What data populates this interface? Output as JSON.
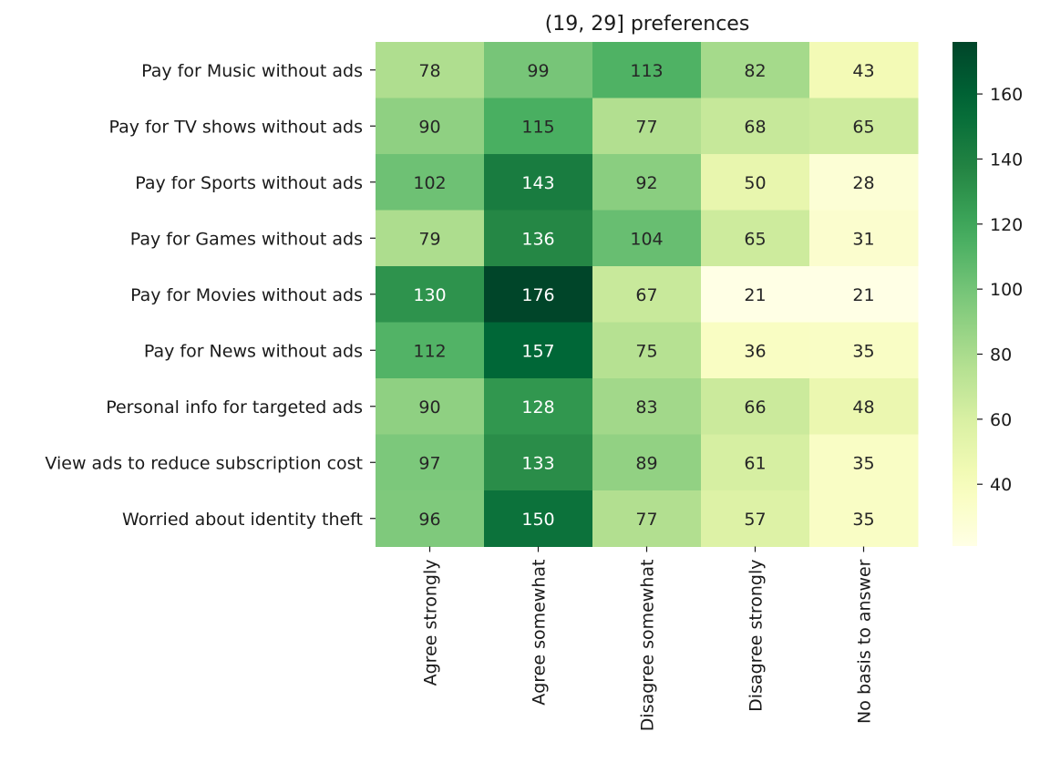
{
  "chart_data": {
    "type": "heatmap",
    "title": "(19, 29] preferences",
    "xlabel": "",
    "ylabel": "",
    "columns": [
      "Agree strongly",
      "Agree somewhat",
      "Disagree somewhat",
      "Disagree strongly",
      "No basis to answer"
    ],
    "rows": [
      "Pay for Music without ads",
      "Pay for TV shows without ads",
      "Pay for Sports without ads",
      "Pay for Games without ads",
      "Pay for Movies without ads",
      "Pay for News without ads",
      "Personal info for targeted ads",
      "View ads to reduce subscription cost",
      "Worried about identity theft"
    ],
    "values": [
      [
        78,
        99,
        113,
        82,
        43
      ],
      [
        90,
        115,
        77,
        68,
        65
      ],
      [
        102,
        143,
        92,
        50,
        28
      ],
      [
        79,
        136,
        104,
        65,
        31
      ],
      [
        130,
        176,
        67,
        21,
        21
      ],
      [
        112,
        157,
        75,
        36,
        35
      ],
      [
        90,
        128,
        83,
        66,
        48
      ],
      [
        97,
        133,
        89,
        61,
        35
      ],
      [
        96,
        150,
        77,
        57,
        35
      ]
    ],
    "colormap": "YlGn",
    "colorbar": {
      "range": [
        21,
        176
      ],
      "ticks": [
        40,
        60,
        80,
        100,
        120,
        140,
        160
      ]
    },
    "annotations": true
  }
}
